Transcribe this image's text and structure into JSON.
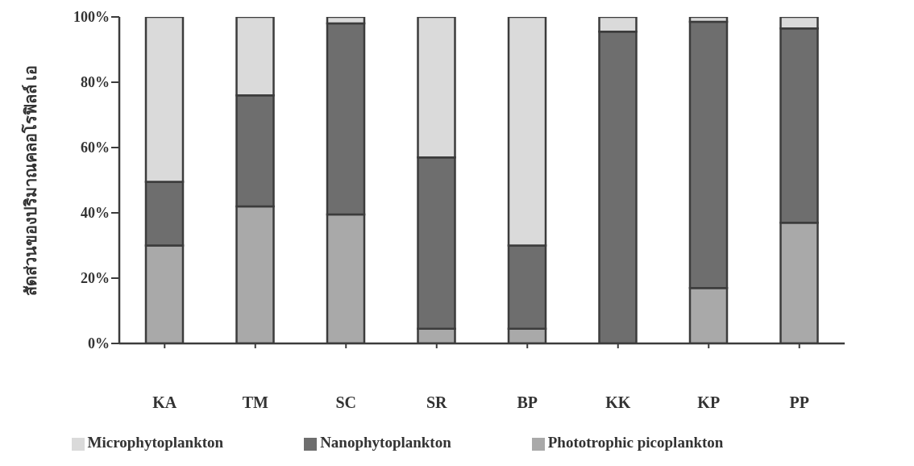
{
  "chart_data": {
    "type": "bar",
    "stacked": true,
    "ylabel": "สัดส่วนของปริมาณคลอโรฟิลล์ เอ",
    "categories": [
      "KA",
      "TM",
      "SC",
      "SR",
      "BP",
      "KK",
      "KP",
      "PP"
    ],
    "series": [
      {
        "name": "Phototrophic picoplankton",
        "color": "#a9a9a9",
        "values": [
          30,
          42,
          39.5,
          4.5,
          4.5,
          0,
          17,
          37
        ]
      },
      {
        "name": "Nanophytoplankton",
        "color": "#6e6e6e",
        "values": [
          19.5,
          34,
          58.5,
          52.5,
          25.5,
          95.5,
          81.5,
          59.5
        ]
      },
      {
        "name": "Microphytoplankton",
        "color": "#dadada",
        "values": [
          50.5,
          24,
          2,
          43,
          70,
          4.5,
          1.5,
          3.5
        ]
      }
    ],
    "ylim": [
      0,
      100
    ],
    "yticks": [
      {
        "value": 0,
        "label": "0%"
      },
      {
        "value": 20,
        "label": "20%"
      },
      {
        "value": 40,
        "label": "40%"
      },
      {
        "value": 60,
        "label": "60%"
      },
      {
        "value": 80,
        "label": "80%"
      },
      {
        "value": 100,
        "label": "100%"
      }
    ],
    "legend": "bottom"
  }
}
